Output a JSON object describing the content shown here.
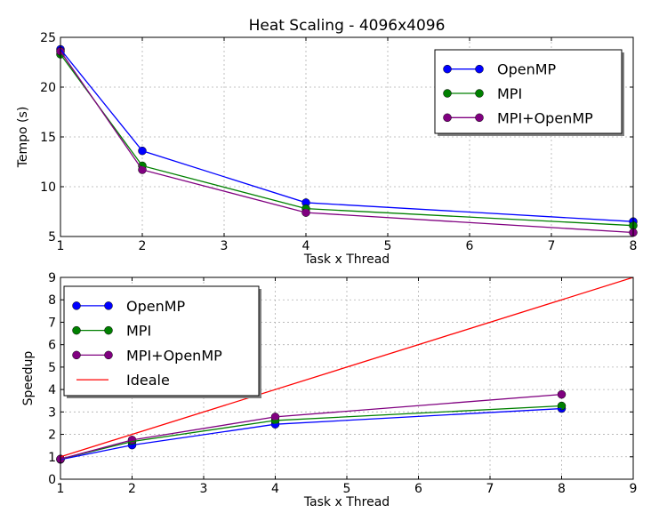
{
  "colors": {
    "openmp": "#0000ff",
    "mpi": "#008000",
    "mpi_openmp": "#800080",
    "ideale": "#ff0000"
  },
  "chart_data": [
    {
      "type": "line",
      "title": "Heat Scaling - 4096x4096",
      "xlabel": "Task x Thread",
      "ylabel": "Tempo (s)",
      "xlim": [
        1,
        8
      ],
      "ylim": [
        5,
        25
      ],
      "xticks": [
        1,
        2,
        3,
        4,
        5,
        6,
        7,
        8
      ],
      "yticks": [
        5,
        10,
        15,
        20,
        25
      ],
      "grid": true,
      "legend": "top-right",
      "series": [
        {
          "name": "OpenMP",
          "color": "#0000ff",
          "marker": "circle",
          "x": [
            1,
            2,
            4,
            8
          ],
          "y": [
            23.8,
            13.6,
            8.4,
            6.5
          ]
        },
        {
          "name": "MPI",
          "color": "#008000",
          "marker": "circle",
          "x": [
            1,
            2,
            4,
            8
          ],
          "y": [
            23.3,
            12.1,
            7.8,
            6.1
          ]
        },
        {
          "name": "MPI+OpenMP",
          "color": "#800080",
          "marker": "circle",
          "x": [
            1,
            2,
            4,
            8
          ],
          "y": [
            23.6,
            11.7,
            7.4,
            5.4
          ]
        }
      ]
    },
    {
      "type": "line",
      "title": "",
      "xlabel": "Task x Thread",
      "ylabel": "Speedup",
      "xlim": [
        1,
        9
      ],
      "ylim": [
        0,
        9
      ],
      "xticks": [
        1,
        2,
        3,
        4,
        5,
        6,
        7,
        8,
        9
      ],
      "yticks": [
        0,
        1,
        2,
        3,
        4,
        5,
        6,
        7,
        8,
        9
      ],
      "grid": true,
      "legend": "top-left",
      "series": [
        {
          "name": "OpenMP",
          "color": "#0000ff",
          "marker": "circle",
          "x": [
            1,
            2,
            4,
            8
          ],
          "y": [
            0.88,
            1.52,
            2.45,
            3.15
          ]
        },
        {
          "name": "MPI",
          "color": "#008000",
          "marker": "circle",
          "x": [
            1,
            2,
            4,
            8
          ],
          "y": [
            0.9,
            1.68,
            2.62,
            3.27
          ]
        },
        {
          "name": "MPI+OpenMP",
          "color": "#800080",
          "marker": "circle",
          "x": [
            1,
            2,
            4,
            8
          ],
          "y": [
            0.9,
            1.75,
            2.78,
            3.78
          ]
        },
        {
          "name": "Ideale",
          "color": "#ff0000",
          "marker": "none",
          "x": [
            1,
            9
          ],
          "y": [
            1,
            9
          ]
        }
      ]
    }
  ]
}
